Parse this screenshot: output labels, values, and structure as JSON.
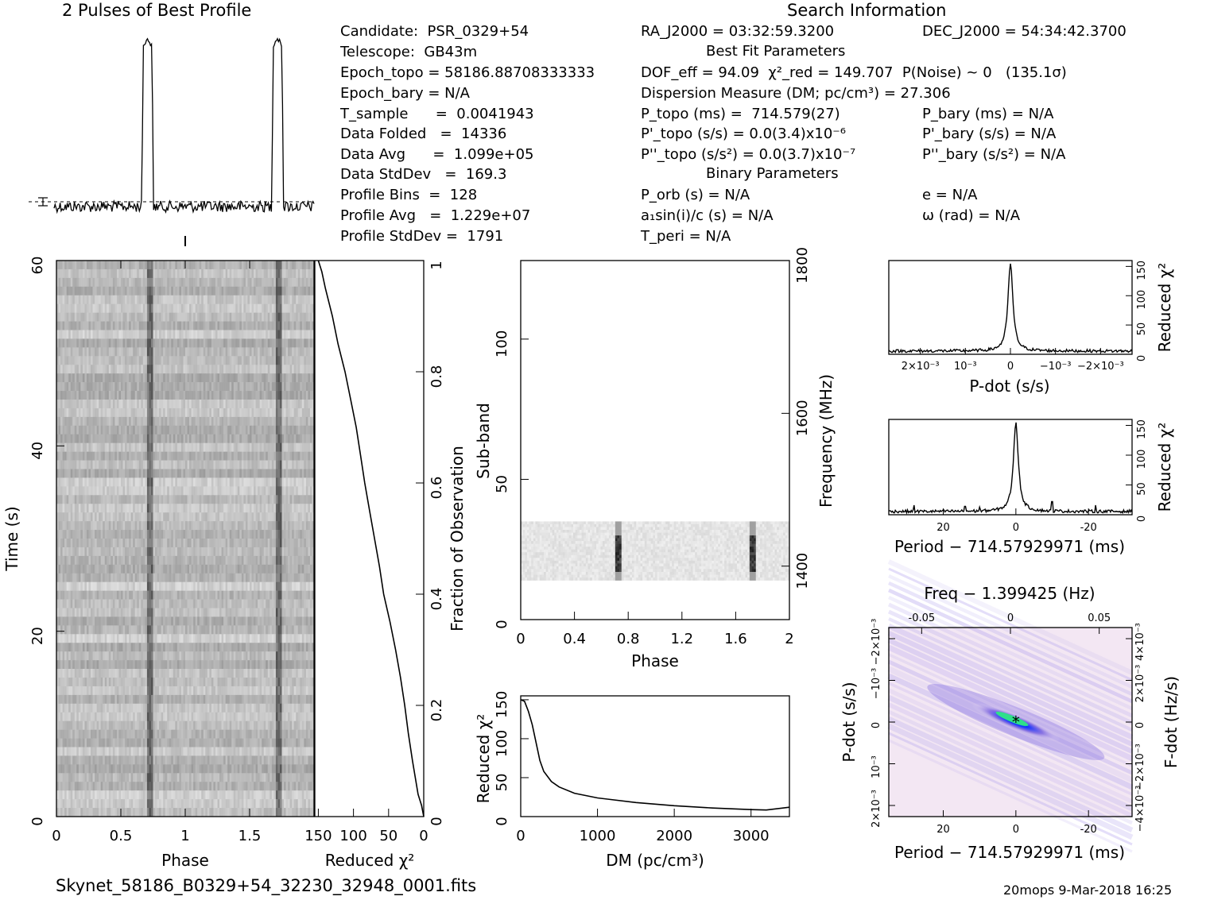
{
  "header": {
    "profile_title": "2 Pulses of Best Profile",
    "search_title": "Search Information",
    "fit_title": "Best Fit Parameters",
    "binary_title": "Binary Parameters"
  },
  "candidate": {
    "candidate": "Candidate:  PSR_0329+54",
    "telescope": "Telescope:  GB43m",
    "epoch_topo": "Epoch_topo = 58186.88708333333",
    "epoch_bary": "Epoch_bary = N/A",
    "t_sample": "T_sample      =  0.0041943",
    "data_folded": "Data Folded   =  14336",
    "data_avg": "Data Avg      =  1.099e+05",
    "data_stddev": "Data StdDev   =  169.3",
    "profile_bins": "Profile Bins  =  128",
    "profile_avg": "Profile Avg   =  1.229e+07",
    "profile_stddev": "Profile StdDev =  1791"
  },
  "search": {
    "ra": "RA_J2000 = 03:32:59.3200",
    "dec": "DEC_J2000 = 54:34:42.3700",
    "dof": "DOF_eff = 94.09  χ²_red = 149.707  P(Noise) ~ 0   (135.1σ)",
    "dm": "Dispersion Measure (DM; pc/cm³) = 27.306",
    "p_topo": "P_topo (ms) =  714.579(27)",
    "pd_topo": "P'_topo (s/s) = 0.0(3.4)x10⁻⁶",
    "pdd_topo": "P''_topo (s/s²) = 0.0(3.7)x10⁻⁷",
    "p_bary": "P_bary (ms) = N/A",
    "pd_bary": "P'_bary (s/s) = N/A",
    "pdd_bary": "P''_bary (s/s²) = N/A",
    "p_orb": "P_orb (s) = N/A",
    "a1sini": "a₁sin(i)/c (s) = N/A",
    "t_peri": "T_peri = N/A",
    "e": "e = N/A",
    "omega": "ω (rad) = N/A"
  },
  "footer": {
    "filename": "Skynet_58186_B0329+54_32230_32948_0001.fits",
    "stamp": "20mops  9-Mar-2018 16:25"
  },
  "colors": {
    "line": "#000000",
    "dpp_low": "#f4e8f4",
    "dpp_mid": "#7d66e0",
    "dpp_high": "#1030ff",
    "dpp_peak": "#2ee08a"
  },
  "chart_data": [
    {
      "type": "line",
      "name": "profile",
      "title": "2 Pulses of Best Profile",
      "x": "phase 0-2",
      "peaks_phase": [
        0.72,
        1.72
      ],
      "xlim": [
        0,
        2
      ]
    },
    {
      "type": "heatmap",
      "name": "time-phase",
      "xlabel": "Phase",
      "ylabel": "Time (s)",
      "xticks": [
        0,
        0.5,
        1,
        1.5
      ],
      "yticks": [
        0,
        20,
        40,
        60
      ],
      "xlim": [
        0,
        2
      ],
      "ylim": [
        0,
        60
      ],
      "pulse_phase": [
        0.72,
        1.72
      ]
    },
    {
      "type": "line",
      "name": "chi-vs-fraction",
      "xlabel": "Reduced χ²",
      "ylabel": "Fraction of Observation",
      "xticks": [
        150,
        100,
        50,
        0
      ],
      "yticks": [
        0,
        0.2,
        0.4,
        0.6,
        0.8,
        1
      ],
      "xlim": [
        155,
        0
      ],
      "ylim": [
        0,
        1
      ],
      "points": [
        [
          150,
          1
        ],
        [
          145,
          0.98
        ],
        [
          140,
          0.95
        ],
        [
          130,
          0.9
        ],
        [
          122,
          0.85
        ],
        [
          112,
          0.8
        ],
        [
          104,
          0.75
        ],
        [
          96,
          0.7
        ],
        [
          90,
          0.65
        ],
        [
          84,
          0.6
        ],
        [
          77,
          0.55
        ],
        [
          70,
          0.5
        ],
        [
          63,
          0.45
        ],
        [
          57,
          0.4
        ],
        [
          48,
          0.35
        ],
        [
          40,
          0.3
        ],
        [
          33,
          0.25
        ],
        [
          27,
          0.2
        ],
        [
          22,
          0.15
        ],
        [
          16,
          0.1
        ],
        [
          12,
          0.07
        ],
        [
          8,
          0.04
        ],
        [
          3,
          0.02
        ],
        [
          0,
          0
        ]
      ]
    },
    {
      "type": "heatmap",
      "name": "subband-phase",
      "xlabel": "Phase",
      "ylabel": "Sub-band",
      "y2label": "Frequency (MHz)",
      "xticks": [
        0,
        0.4,
        0.8,
        1.2,
        1.6,
        2
      ],
      "yticks": [
        0,
        50,
        100
      ],
      "y2ticks": [
        1400,
        1600,
        1800
      ],
      "xlim": [
        0,
        2
      ],
      "ylim": [
        0,
        128
      ],
      "band_subbands": [
        14,
        35
      ],
      "pulse_phase": [
        0.72,
        1.72
      ]
    },
    {
      "type": "line",
      "name": "dm-curve",
      "xlabel": "DM (pc/cm³)",
      "ylabel": "Reduced χ²",
      "xticks": [
        0,
        1000,
        2000,
        3000
      ],
      "yticks": [
        0,
        50,
        100,
        150
      ],
      "xlim": [
        0,
        3500
      ],
      "ylim": [
        0,
        155
      ],
      "points": [
        [
          0,
          150
        ],
        [
          50,
          148
        ],
        [
          100,
          135
        ],
        [
          150,
          118
        ],
        [
          200,
          95
        ],
        [
          250,
          72
        ],
        [
          300,
          58
        ],
        [
          400,
          45
        ],
        [
          500,
          38
        ],
        [
          700,
          30
        ],
        [
          1000,
          24
        ],
        [
          1500,
          18
        ],
        [
          2000,
          14
        ],
        [
          2500,
          11
        ],
        [
          3000,
          9
        ],
        [
          3200,
          8.5
        ],
        [
          3500,
          12
        ]
      ]
    },
    {
      "type": "line",
      "name": "pdot-curve",
      "xlabel": "P-dot (s/s)",
      "ylabel": "Reduced χ²",
      "xticks": [
        "2×10⁻³",
        "10⁻³",
        "0",
        "−10⁻³",
        "−2×10⁻³"
      ],
      "xtick_values": [
        0.002,
        0.001,
        0,
        -0.001,
        -0.002
      ],
      "yticks": [
        0,
        50,
        100,
        150
      ],
      "xlim": [
        0.0027,
        -0.0027
      ],
      "ylim": [
        0,
        160
      ],
      "peak": {
        "x": 0,
        "y": 150
      }
    },
    {
      "type": "line",
      "name": "period-curve",
      "xlabel": "Period − 714.57929971 (ms)",
      "ylabel": "Reduced χ²",
      "xticks": [
        20,
        0,
        -20
      ],
      "yticks": [
        0,
        50,
        100,
        150
      ],
      "xlim": [
        35,
        -32
      ],
      "ylim": [
        0,
        160
      ],
      "peak": {
        "x": 0,
        "y": 150
      },
      "spikes": [
        [
          28,
          16
        ],
        [
          14,
          14
        ],
        [
          10,
          13
        ],
        [
          -10,
          22
        ],
        [
          -22,
          16
        ]
      ]
    },
    {
      "type": "heatmap",
      "name": "p-pdot-plane",
      "xlabel": "Period − 714.57929971 (ms)",
      "ylabel": "P-dot (s/s)",
      "x2label": "Freq − 1.399425 (Hz)",
      "y2label": "F-dot (Hz/s)",
      "xticks": [
        20,
        0,
        -20
      ],
      "x2ticks": [
        -0.05,
        0,
        0.05
      ],
      "yticks": [
        "2×10⁻³",
        "10⁻³",
        "0",
        "−10⁻³",
        "−2×10⁻³"
      ],
      "y2ticks": [
        "−4×10⁻³",
        "−2×10⁻³",
        "0",
        "2×10⁻³",
        "4×10⁻³"
      ],
      "xlim": [
        35,
        -32
      ],
      "best_fit": {
        "period_offset_ms": 0,
        "pdot": 0
      }
    }
  ]
}
